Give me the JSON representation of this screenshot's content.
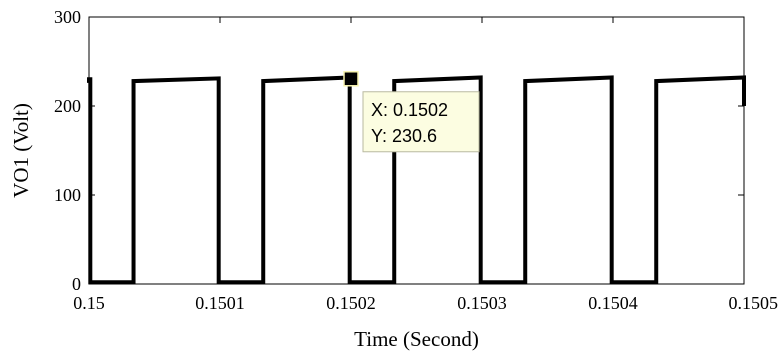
{
  "chart_data": {
    "type": "line",
    "xlabel": "Time (Second)",
    "ylabel": "VO1 (Volt)",
    "xlim": [
      0.15,
      0.1505
    ],
    "ylim": [
      0,
      300
    ],
    "x_ticks": [
      0.15,
      0.1501,
      0.1502,
      0.1503,
      0.1504,
      0.1505
    ],
    "x_tick_labels": [
      "0.15",
      "0.1501",
      "0.1502",
      "0.1503",
      "0.1504",
      "0.1505"
    ],
    "y_ticks": [
      0,
      100,
      200,
      300
    ],
    "y_tick_labels": [
      "0",
      "100",
      "200",
      "300"
    ],
    "grid": false,
    "series": [
      {
        "color": "#000000",
        "x": [
          0.15,
          0.15,
          0.150001,
          0.150001,
          0.150034,
          0.150034,
          0.150099,
          0.150099,
          0.150133,
          0.150133,
          0.150199,
          0.150199,
          0.150233,
          0.150233,
          0.150299,
          0.150299,
          0.150333,
          0.150333,
          0.150399,
          0.150399,
          0.150433,
          0.150433,
          0.1505,
          0.1505
        ],
        "y": [
          226,
          230,
          230,
          2,
          2,
          228,
          231,
          2,
          2,
          228,
          232,
          2,
          2,
          228,
          232,
          2,
          2,
          228,
          232,
          2,
          2,
          228,
          232,
          200
        ]
      }
    ],
    "datatip": {
      "x": 0.1502,
      "y": 230.6,
      "x_text": "X: 0.1502",
      "y_text": "Y: 230.6"
    }
  }
}
